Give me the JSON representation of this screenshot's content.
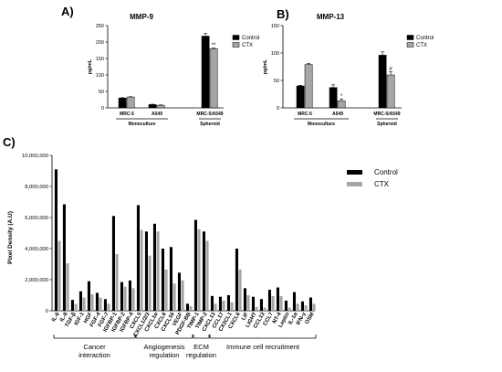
{
  "chart_data": [
    {
      "panel": "A)",
      "type": "bar",
      "title": "MMP-9",
      "ylabel": "pg/mL",
      "ylim": [
        0,
        250
      ],
      "yticks": [
        0,
        50,
        100,
        150,
        200,
        250
      ],
      "categories": [
        "MRC-5",
        "A549",
        "MRC-5/A549"
      ],
      "groups": [
        {
          "label": "Monoculture",
          "categories": [
            "MRC-5",
            "A549"
          ]
        },
        {
          "label": "Spheroid",
          "categories": [
            "MRC-5/A549"
          ]
        }
      ],
      "series": [
        {
          "name": "Control",
          "color": "#000000",
          "values": [
            30,
            10,
            218
          ],
          "errors": [
            1,
            1,
            8
          ]
        },
        {
          "name": "CTX",
          "color": "#a6a6a6",
          "values": [
            33,
            8,
            180
          ],
          "errors": [
            1,
            1,
            2
          ]
        }
      ],
      "annotations": [
        {
          "category": "MRC-5/A549",
          "series": "CTX",
          "text": "**"
        }
      ],
      "legend": "top-right"
    },
    {
      "panel": "B)",
      "type": "bar",
      "title": "MMP-13",
      "ylabel": "pg/mL",
      "ylim": [
        0,
        150
      ],
      "yticks": [
        0,
        50,
        100,
        150
      ],
      "categories": [
        "MRC-5",
        "A549",
        "MRC-5/A549"
      ],
      "groups": [
        {
          "label": "Monoculture",
          "categories": [
            "MRC-5",
            "A549"
          ]
        },
        {
          "label": "Spheroid",
          "categories": [
            "MRC-5/A549"
          ]
        }
      ],
      "series": [
        {
          "name": "Control",
          "color": "#000000",
          "values": [
            40,
            37,
            96
          ],
          "errors": [
            1,
            5,
            6
          ]
        },
        {
          "name": "CTX",
          "color": "#a6a6a6",
          "values": [
            79,
            13,
            60
          ],
          "errors": [
            2,
            3,
            6
          ]
        }
      ],
      "annotations": [
        {
          "category": "A549",
          "series": "CTX",
          "text": "*"
        },
        {
          "category": "MRC-5/A549",
          "series": "CTX",
          "text": "#"
        }
      ],
      "legend": "top-right"
    },
    {
      "panel": "C)",
      "type": "bar",
      "ylabel": "Pixel Density (A.U)",
      "ylim": [
        0,
        10000000
      ],
      "yticks": [
        "0",
        "2,000,000",
        "4,000,000",
        "6,000,000",
        "8,000,000",
        "10,000,000"
      ],
      "categories": [
        "IL-6",
        "IL-8",
        "TGF-β",
        "IGF-1",
        "HGF",
        "FGF-4",
        "FGF-7",
        "IGFBP-1",
        "IGFBP-2",
        "IGFBP-4",
        "CXCL5",
        "CXCL1/2/3",
        "CXCL1α",
        "CXCL6",
        "CXCL16",
        "VEGF",
        "PDGF-BB",
        "TIMP-1",
        "TIMP-2",
        "CXCL13",
        "CCL17",
        "CX3CL1",
        "CXCL6",
        "LIF",
        "LIGHT",
        "CCL13",
        "CCL7",
        "NT-4",
        "Leptin",
        "IL-1α",
        "IFN-γ",
        "OSM"
      ],
      "series": [
        {
          "name": "Control",
          "color": "#000000",
          "values": [
            9100000,
            6850000,
            700000,
            1250000,
            1900000,
            1150000,
            750000,
            6100000,
            1850000,
            1950000,
            6800000,
            5100000,
            5600000,
            4000000,
            4100000,
            2450000,
            450000,
            5850000,
            5100000,
            950000,
            900000,
            1000000,
            4000000,
            1450000,
            900000,
            750000,
            1350000,
            1500000,
            650000,
            1200000,
            600000,
            850000
          ]
        },
        {
          "name": "CTX",
          "color": "#a6a6a6",
          "values": [
            4500000,
            3050000,
            450000,
            850000,
            1050000,
            850000,
            450000,
            3650000,
            1550000,
            1450000,
            5200000,
            3550000,
            5100000,
            2650000,
            1750000,
            1950000,
            300000,
            5250000,
            4500000,
            450000,
            650000,
            550000,
            2650000,
            1000000,
            250000,
            200000,
            950000,
            950000,
            200000,
            450000,
            350000,
            450000
          ]
        }
      ],
      "groups": [
        {
          "label": "Cancer interaction",
          "from": 0,
          "to": 9
        },
        {
          "label": "Angiogenesis regulation",
          "from": 10,
          "to": 16
        },
        {
          "label": "ECM regulation",
          "from": 17,
          "to": 18
        },
        {
          "label": "Immune cell recruitment",
          "from": 19,
          "to": 31
        }
      ],
      "legend": "top-right"
    }
  ]
}
